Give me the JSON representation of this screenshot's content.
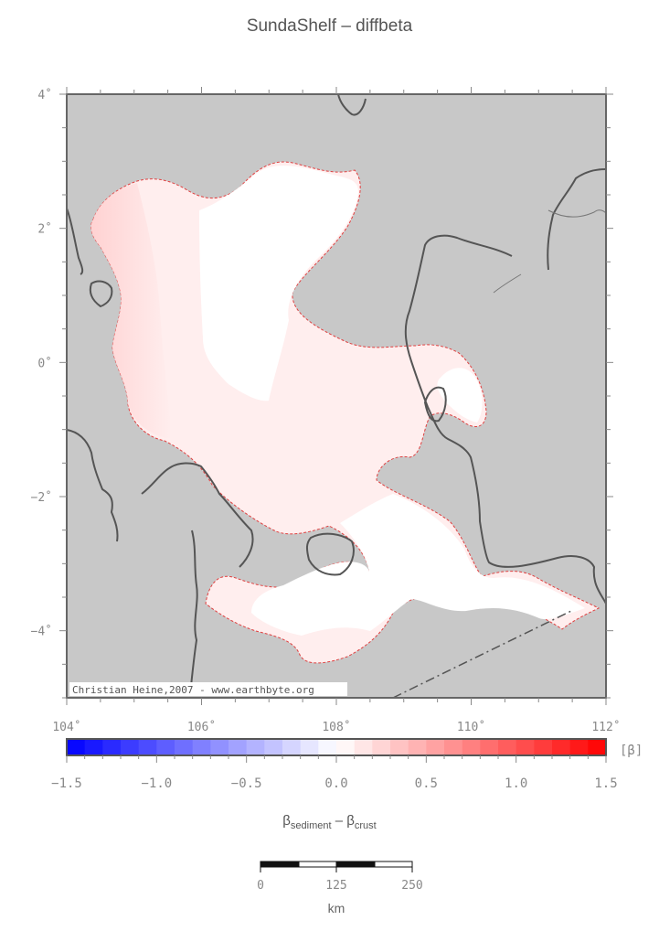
{
  "title": "SundaShelf – diffbeta",
  "credit": "Christian Heine,2007 - www.earthbyte.org",
  "map": {
    "x_ticks": [
      {
        "value": 104,
        "label": "104˚"
      },
      {
        "value": 106,
        "label": "106˚"
      },
      {
        "value": 108,
        "label": "108˚"
      },
      {
        "value": 110,
        "label": "110˚"
      },
      {
        "value": 112,
        "label": "112˚"
      }
    ],
    "y_ticks": [
      {
        "value": 4,
        "label": "4˚"
      },
      {
        "value": 2,
        "label": "2˚"
      },
      {
        "value": 0,
        "label": "0˚"
      },
      {
        "value": -2,
        "label": "−2˚"
      },
      {
        "value": -4,
        "label": "−4˚"
      }
    ],
    "lon_range": [
      104,
      112
    ],
    "lat_range": [
      -5,
      4
    ],
    "colors": {
      "background": "#c8c8c8",
      "region_fill": "#ffeeee",
      "region_outline": "#e04040",
      "coastline": "#555555"
    }
  },
  "colorbar": {
    "unit": "[β]",
    "range": [
      -1.5,
      1.5
    ],
    "tick_labels": [
      {
        "value": -1.5,
        "label": "−1.5"
      },
      {
        "value": -1.0,
        "label": "−1.0"
      },
      {
        "value": -0.5,
        "label": "−0.5"
      },
      {
        "value": 0.0,
        "label": "0.0"
      },
      {
        "value": 0.5,
        "label": "0.5"
      },
      {
        "value": 1.0,
        "label": "1.0"
      },
      {
        "value": 1.5,
        "label": "1.5"
      }
    ],
    "formula": {
      "part1": "β",
      "sub1": "sediment",
      "minus": " – ",
      "part2": "β",
      "sub2": "crust"
    }
  },
  "scalebar": {
    "labels": [
      "0",
      "125",
      "250"
    ],
    "unit": "km"
  }
}
